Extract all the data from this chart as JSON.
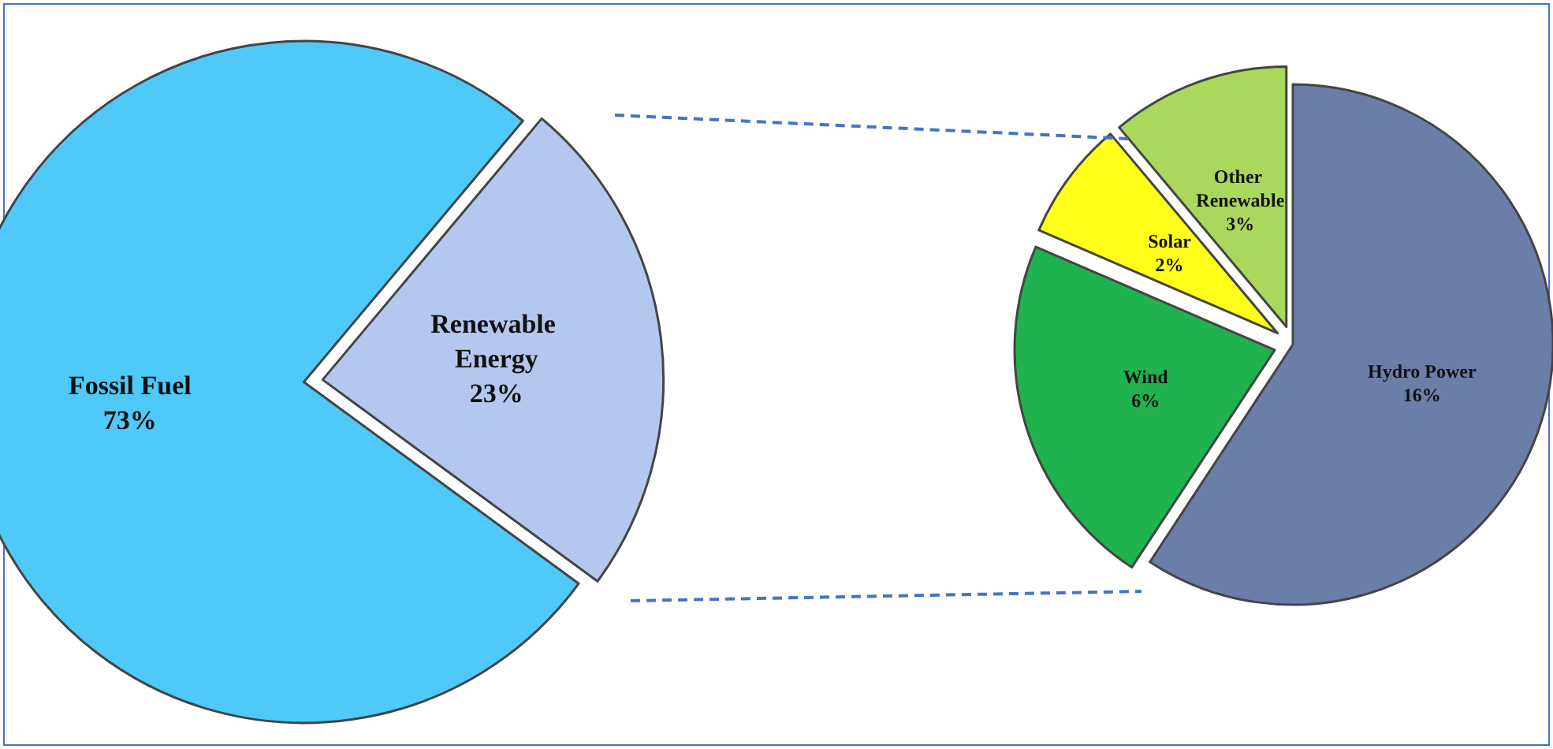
{
  "chart_data": [
    {
      "type": "pie",
      "categories": [
        "Renewable Energy",
        "Fossil Fuel"
      ],
      "values": [
        23,
        73
      ],
      "value_labels": [
        "23%",
        "73%"
      ],
      "colors": [
        "#b4c7ee",
        "#4fc9f7"
      ],
      "data_labels": true
    },
    {
      "type": "pie",
      "categories": [
        "Hydro Power",
        "Wind",
        "Solar",
        "Other Renewable"
      ],
      "values": [
        16,
        6,
        2,
        3
      ],
      "value_labels": [
        "16%",
        "6%",
        "2%",
        "3%"
      ],
      "colors": [
        "#6a7ea8",
        "#1fb24f",
        "#ffff1a",
        "#a9d85c"
      ],
      "data_labels": true
    }
  ]
}
